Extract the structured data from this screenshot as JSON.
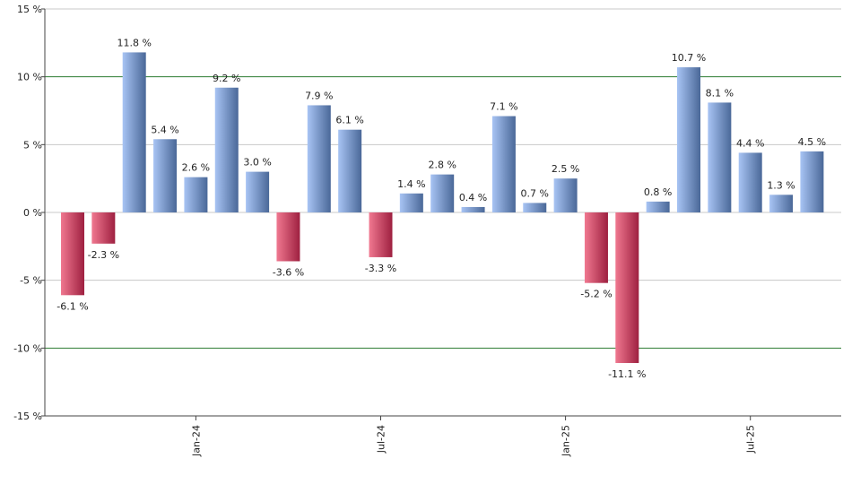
{
  "chart_data": {
    "type": "bar",
    "title": "",
    "xlabel": "",
    "ylabel": "",
    "ylim": [
      -15,
      15
    ],
    "y_ticks": [
      15,
      10,
      5,
      0,
      -5,
      -10,
      -15
    ],
    "y_tick_labels": [
      "15 %",
      "10 %",
      "5 %",
      "0 %",
      "-5 %",
      "-10 %",
      "-15 %"
    ],
    "x_tick_labels": [
      {
        "label": "Jan-24",
        "index": 4
      },
      {
        "label": "Jul-24",
        "index": 10
      },
      {
        "label": "Jan-25",
        "index": 16
      },
      {
        "label": "Jul-25",
        "index": 22
      }
    ],
    "values": [
      -6.1,
      -2.3,
      11.8,
      5.4,
      2.6,
      9.2,
      3.0,
      -3.6,
      7.9,
      6.1,
      -3.3,
      1.4,
      2.8,
      0.4,
      7.1,
      0.7,
      2.5,
      -5.2,
      -11.1,
      0.8,
      10.7,
      8.1,
      4.4,
      1.3,
      4.5
    ],
    "value_labels": [
      "-6.1 %",
      "-2.3 %",
      "11.8 %",
      "5.4 %",
      "2.6 %",
      "9.2 %",
      "3.0 %",
      "-3.6 %",
      "7.9 %",
      "6.1 %",
      "-3.3 %",
      "1.4 %",
      "2.8 %",
      "0.4 %",
      "7.1 %",
      "0.7 %",
      "2.5 %",
      "-5.2 %",
      "-11.1 %",
      "0.8 %",
      "10.7 %",
      "8.1 %",
      "4.4 %",
      "1.3 %",
      "4.5 %"
    ],
    "highlight_lines": [
      10,
      -10
    ],
    "grid": true,
    "colors": {
      "positive_light": "#a8c4f4",
      "positive_dark": "#4a6898",
      "negative_light": "#f07890",
      "negative_dark": "#9e2040",
      "gridline": "#c8c8c8",
      "highlight_line": "#2e7d32",
      "axis": "#444444"
    }
  }
}
